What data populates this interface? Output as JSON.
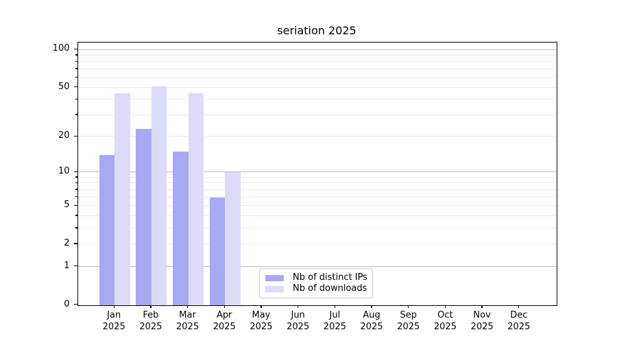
{
  "figure": {
    "background": "#ffffff",
    "spine_color": "#000000"
  },
  "chart_data": {
    "type": "bar",
    "title": "seriation 2025",
    "xlabel": "",
    "ylabel": "",
    "yscale": "log1p",
    "ylim": [
      0,
      115
    ],
    "grid": true,
    "legend_position": "lower center-right",
    "categories": [
      "Jan",
      "Feb",
      "Mar",
      "Apr",
      "May",
      "Jun",
      "Jul",
      "Aug",
      "Sep",
      "Oct",
      "Nov",
      "Dec"
    ],
    "category_year": "2025",
    "series": [
      {
        "name": "Nb of distinct IPs",
        "color": "#a9a9f1",
        "values": [
          14,
          23,
          15,
          6,
          0,
          0,
          0,
          0,
          0,
          0,
          0,
          0
        ]
      },
      {
        "name": "Nb of downloads",
        "color": "#dcdcf8",
        "values": [
          45,
          51,
          45,
          10,
          0,
          0,
          0,
          0,
          0,
          0,
          0,
          0
        ]
      }
    ],
    "yticks": [
      0,
      1,
      2,
      5,
      10,
      20,
      50,
      100
    ],
    "major_grid": [
      1,
      10,
      100
    ],
    "minor_grid": [
      2,
      3,
      4,
      5,
      6,
      7,
      8,
      9,
      20,
      30,
      40,
      50,
      60,
      70,
      80,
      90
    ],
    "grid_colors": {
      "major": "#bdbdbd",
      "minor": "#ebebeb"
    }
  }
}
